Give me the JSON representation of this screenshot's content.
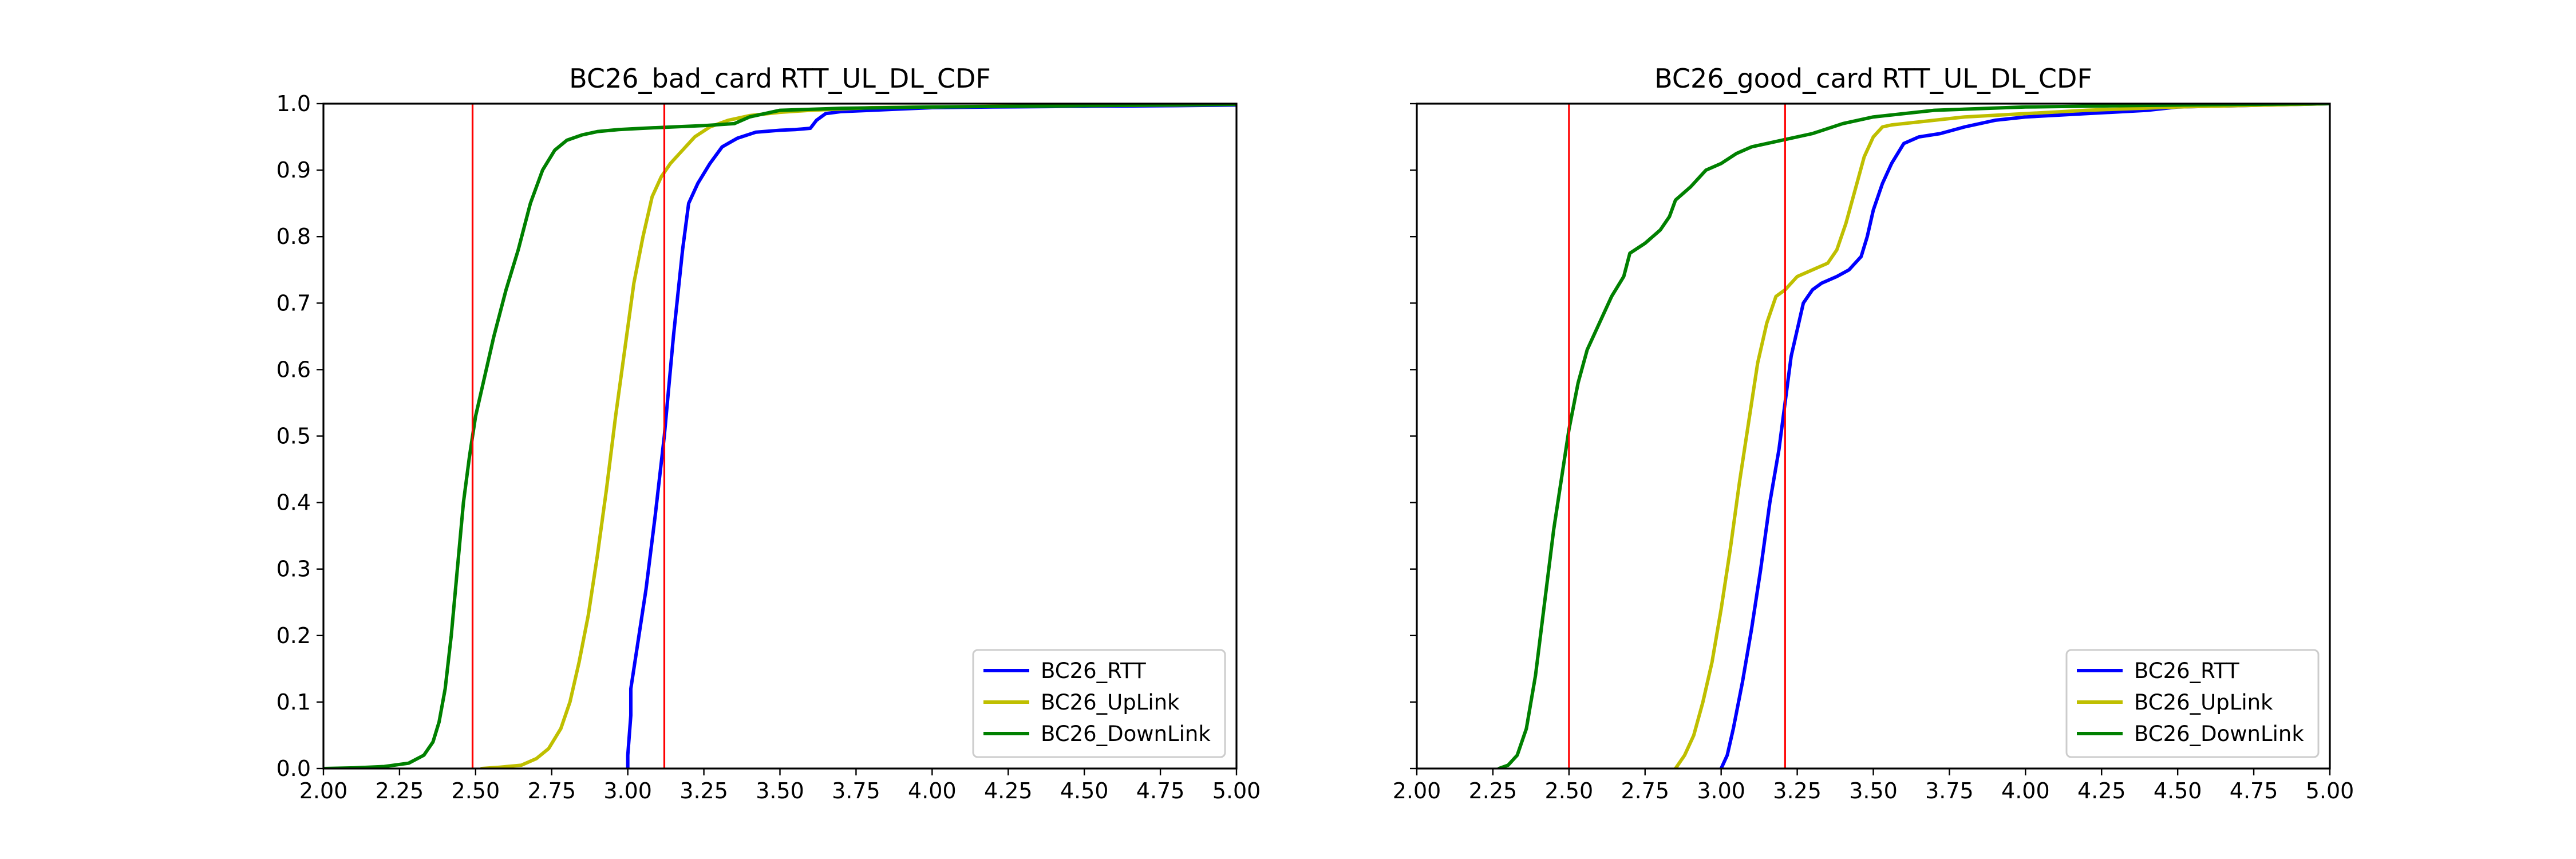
{
  "colors": {
    "BC26_RTT": "#0000ff",
    "BC26_UpLink": "#bfbf00",
    "BC26_DownLink": "#008000",
    "reference_line": "#ff0000",
    "axes": "#000000",
    "background": "#ffffff"
  },
  "chart_data": [
    {
      "type": "line",
      "title": "BC26_bad_card RTT_UL_DL_CDF",
      "xlabel": "",
      "ylabel": "",
      "xlim": [
        2.0,
        5.0
      ],
      "ylim": [
        0.0,
        1.0
      ],
      "xticks": [
        "2.00",
        "2.25",
        "2.50",
        "2.75",
        "3.00",
        "3.25",
        "3.50",
        "3.75",
        "4.00",
        "4.25",
        "4.50",
        "4.75",
        "5.00"
      ],
      "yticks": [
        "0.0",
        "0.1",
        "0.2",
        "0.3",
        "0.4",
        "0.5",
        "0.6",
        "0.7",
        "0.8",
        "0.9",
        "1.0"
      ],
      "grid": false,
      "legend_position": "lower right",
      "vertical_reference_lines": [
        2.49,
        3.12
      ],
      "series": [
        {
          "name": "BC26_RTT",
          "color": "#0000ff",
          "x": [
            3.0,
            3.0,
            3.01,
            3.01,
            3.03,
            3.06,
            3.09,
            3.12,
            3.15,
            3.18,
            3.2,
            3.23,
            3.27,
            3.31,
            3.36,
            3.42,
            3.5,
            3.55,
            3.6,
            3.62,
            3.65,
            3.7,
            3.8,
            3.9,
            4.0,
            4.2,
            4.5,
            4.8,
            5.0
          ],
          "y": [
            0.0,
            0.02,
            0.08,
            0.12,
            0.18,
            0.27,
            0.38,
            0.5,
            0.65,
            0.78,
            0.85,
            0.88,
            0.91,
            0.935,
            0.948,
            0.957,
            0.96,
            0.961,
            0.963,
            0.975,
            0.985,
            0.988,
            0.99,
            0.992,
            0.994,
            0.995,
            0.996,
            0.997,
            0.998
          ]
        },
        {
          "name": "BC26_UpLink",
          "color": "#bfbf00",
          "x": [
            2.52,
            2.58,
            2.65,
            2.7,
            2.74,
            2.78,
            2.81,
            2.84,
            2.87,
            2.9,
            2.93,
            2.96,
            2.99,
            3.02,
            3.05,
            3.08,
            3.11,
            3.14,
            3.18,
            3.22,
            3.27,
            3.33,
            3.4,
            3.5,
            3.6,
            3.7,
            3.8,
            4.0,
            4.2,
            4.5,
            4.8,
            5.0
          ],
          "y": [
            0.0,
            0.002,
            0.005,
            0.015,
            0.03,
            0.06,
            0.1,
            0.16,
            0.23,
            0.32,
            0.42,
            0.53,
            0.63,
            0.73,
            0.8,
            0.86,
            0.89,
            0.91,
            0.93,
            0.95,
            0.965,
            0.975,
            0.982,
            0.987,
            0.99,
            0.992,
            0.994,
            0.995,
            0.996,
            0.997,
            0.998,
            0.999
          ]
        },
        {
          "name": "BC26_DownLink",
          "color": "#008000",
          "x": [
            2.0,
            2.1,
            2.2,
            2.28,
            2.33,
            2.36,
            2.38,
            2.4,
            2.42,
            2.44,
            2.46,
            2.48,
            2.5,
            2.53,
            2.56,
            2.6,
            2.64,
            2.68,
            2.72,
            2.76,
            2.8,
            2.85,
            2.9,
            2.97,
            3.05,
            3.15,
            3.25,
            3.35,
            3.4,
            3.5,
            3.7,
            4.0,
            4.5,
            5.0
          ],
          "y": [
            0.0,
            0.001,
            0.003,
            0.008,
            0.02,
            0.04,
            0.07,
            0.12,
            0.2,
            0.3,
            0.4,
            0.47,
            0.53,
            0.59,
            0.65,
            0.72,
            0.78,
            0.85,
            0.9,
            0.93,
            0.945,
            0.953,
            0.958,
            0.961,
            0.963,
            0.965,
            0.967,
            0.97,
            0.98,
            0.99,
            0.993,
            0.995,
            0.997,
            0.999
          ]
        }
      ]
    },
    {
      "type": "line",
      "title": "BC26_good_card RTT_UL_DL_CDF",
      "xlabel": "",
      "ylabel": "",
      "xlim": [
        2.0,
        5.0
      ],
      "ylim": [
        0.0,
        1.0
      ],
      "xticks": [
        "2.00",
        "2.25",
        "2.50",
        "2.75",
        "3.00",
        "3.25",
        "3.50",
        "3.75",
        "4.00",
        "4.25",
        "4.50",
        "4.75",
        "5.00"
      ],
      "yticks": [
        "0.0",
        "0.1",
        "0.2",
        "0.3",
        "0.4",
        "0.5",
        "0.6",
        "0.7",
        "0.8",
        "0.9",
        "1.0"
      ],
      "grid": false,
      "legend_position": "lower right",
      "vertical_reference_lines": [
        2.5,
        3.21
      ],
      "series": [
        {
          "name": "BC26_RTT",
          "color": "#0000ff",
          "x": [
            3.0,
            3.02,
            3.04,
            3.07,
            3.1,
            3.13,
            3.16,
            3.19,
            3.21,
            3.23,
            3.25,
            3.27,
            3.3,
            3.33,
            3.38,
            3.42,
            3.46,
            3.48,
            3.5,
            3.53,
            3.56,
            3.6,
            3.65,
            3.72,
            3.8,
            3.9,
            4.0,
            4.2,
            4.4,
            4.5,
            4.7,
            5.0
          ],
          "y": [
            0.0,
            0.02,
            0.06,
            0.13,
            0.21,
            0.3,
            0.4,
            0.48,
            0.55,
            0.62,
            0.66,
            0.7,
            0.72,
            0.73,
            0.74,
            0.75,
            0.77,
            0.8,
            0.84,
            0.88,
            0.91,
            0.94,
            0.95,
            0.955,
            0.965,
            0.975,
            0.98,
            0.985,
            0.99,
            0.995,
            0.997,
            1.0
          ]
        },
        {
          "name": "BC26_UpLink",
          "color": "#bfbf00",
          "x": [
            2.85,
            2.88,
            2.91,
            2.94,
            2.97,
            3.0,
            3.03,
            3.06,
            3.09,
            3.12,
            3.15,
            3.18,
            3.21,
            3.25,
            3.3,
            3.35,
            3.38,
            3.41,
            3.44,
            3.47,
            3.5,
            3.53,
            3.56,
            3.6,
            3.7,
            3.8,
            4.0,
            4.2,
            4.5,
            4.8,
            5.0
          ],
          "y": [
            0.0,
            0.02,
            0.05,
            0.1,
            0.16,
            0.24,
            0.33,
            0.43,
            0.52,
            0.61,
            0.67,
            0.71,
            0.72,
            0.74,
            0.75,
            0.76,
            0.78,
            0.82,
            0.87,
            0.92,
            0.95,
            0.965,
            0.968,
            0.97,
            0.975,
            0.98,
            0.985,
            0.99,
            0.995,
            0.998,
            1.0
          ]
        },
        {
          "name": "BC26_DownLink",
          "color": "#008000",
          "x": [
            2.27,
            2.3,
            2.33,
            2.36,
            2.39,
            2.42,
            2.45,
            2.48,
            2.5,
            2.53,
            2.56,
            2.6,
            2.64,
            2.68,
            2.7,
            2.75,
            2.8,
            2.83,
            2.85,
            2.9,
            2.95,
            3.0,
            3.05,
            3.1,
            3.2,
            3.3,
            3.4,
            3.5,
            3.7,
            4.0,
            4.5,
            5.0
          ],
          "y": [
            0.0,
            0.005,
            0.02,
            0.06,
            0.14,
            0.25,
            0.36,
            0.45,
            0.51,
            0.58,
            0.63,
            0.67,
            0.71,
            0.74,
            0.775,
            0.79,
            0.81,
            0.83,
            0.855,
            0.875,
            0.9,
            0.91,
            0.925,
            0.935,
            0.945,
            0.955,
            0.97,
            0.98,
            0.99,
            0.995,
            0.998,
            1.0
          ]
        }
      ]
    }
  ]
}
